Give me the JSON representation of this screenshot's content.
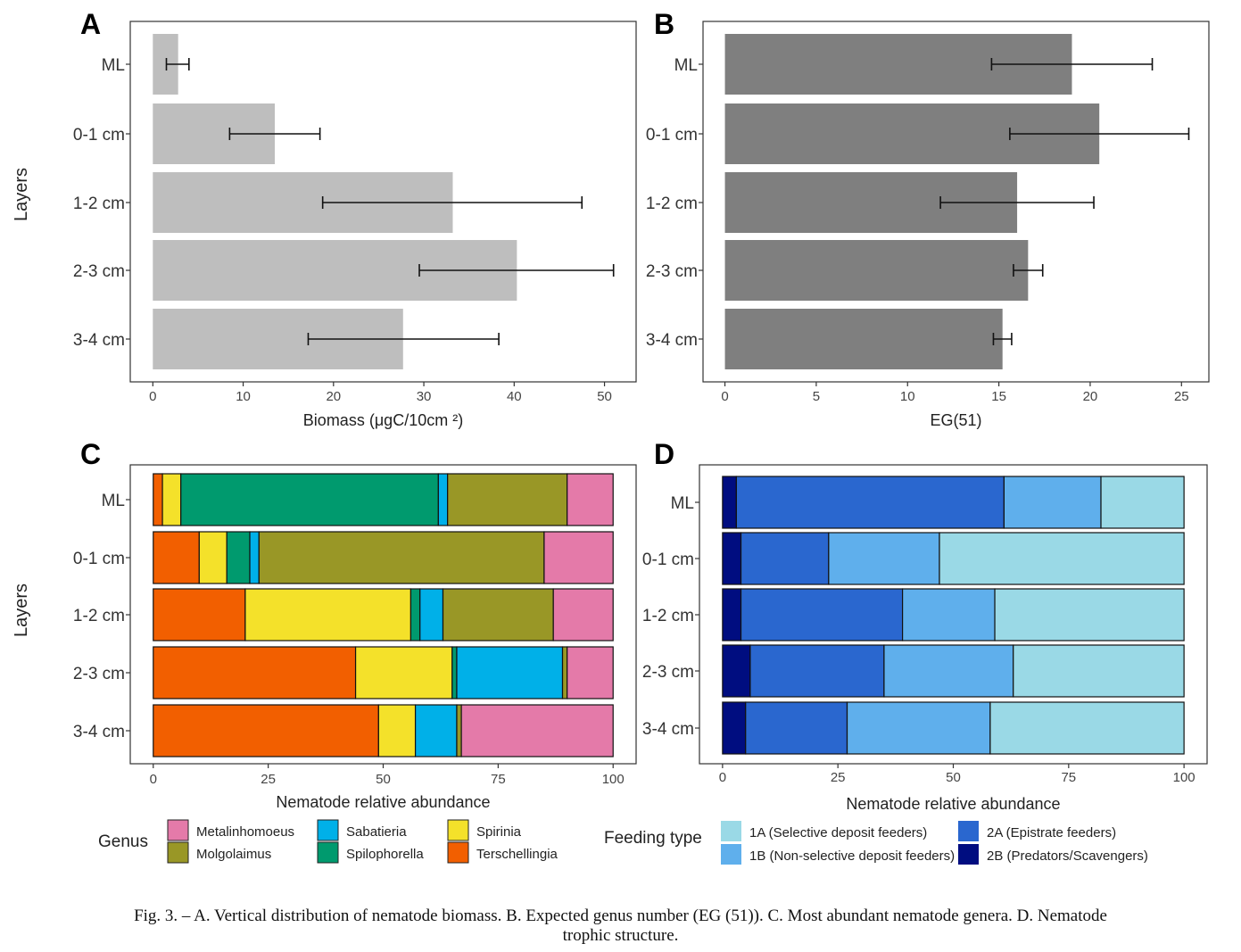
{
  "caption": {
    "line1": "Fig. 3. – A. Vertical distribution of nematode biomass. B. Expected genus number (EG (51)). C. Most abundant nematode genera. D. Nematode",
    "line2": "trophic structure."
  },
  "chart_data": [
    {
      "panel": "A",
      "type": "bar",
      "orientation": "horizontal",
      "categories": [
        "ML",
        "0-1 cm",
        "1-2 cm",
        "2-3 cm",
        "3-4 cm"
      ],
      "values": [
        2.8,
        13.5,
        33.2,
        40.3,
        27.7
      ],
      "error_low": [
        1.5,
        8.5,
        18.8,
        29.5,
        17.2
      ],
      "error_high": [
        4.0,
        18.5,
        47.5,
        51.0,
        38.3
      ],
      "xlabel": "Biomass (μgC/10cm ²)",
      "ylabel": "Layers",
      "xlim": [
        -2.5,
        53.5
      ],
      "xticks": [
        0,
        10,
        20,
        30,
        40,
        50
      ],
      "color": "#bebebe"
    },
    {
      "panel": "B",
      "type": "bar",
      "orientation": "horizontal",
      "categories": [
        "ML",
        "0-1 cm",
        "1-2 cm",
        "2-3 cm",
        "3-4 cm"
      ],
      "values": [
        19.0,
        20.5,
        16.0,
        16.6,
        15.2
      ],
      "error_low": [
        14.6,
        15.6,
        11.8,
        15.8,
        14.7
      ],
      "error_high": [
        23.4,
        25.4,
        20.2,
        17.4,
        15.7
      ],
      "xlabel": "EG(51)",
      "ylabel": "",
      "xlim": [
        -1.2,
        26.5
      ],
      "xticks": [
        0,
        5,
        10,
        15,
        20,
        25
      ],
      "color": "#7f7f7f"
    },
    {
      "panel": "C",
      "type": "bar",
      "stacked": true,
      "orientation": "horizontal",
      "categories": [
        "ML",
        "0-1 cm",
        "1-2 cm",
        "2-3 cm",
        "3-4 cm"
      ],
      "series": [
        {
          "name": "Terschellingia",
          "color": "#f25f00",
          "values": [
            2,
            10,
            20,
            44,
            49
          ]
        },
        {
          "name": "Spirinia",
          "color": "#f4e12a",
          "values": [
            4,
            6,
            36,
            21,
            8
          ]
        },
        {
          "name": "Spilophorella",
          "color": "#009a6e",
          "values": [
            56,
            5,
            2,
            1,
            0
          ]
        },
        {
          "name": "Sabatieria",
          "color": "#00b0e8",
          "values": [
            2,
            2,
            5,
            23,
            9
          ]
        },
        {
          "name": "Molgolaimus",
          "color": "#999726",
          "values": [
            26,
            62,
            24,
            1,
            1
          ]
        },
        {
          "name": "Metalinhomoeus",
          "color": "#e47aa9",
          "values": [
            10,
            15,
            13,
            10,
            33
          ]
        }
      ],
      "legend_order": [
        "Metalinhomoeus",
        "Molgolaimus",
        "Sabatieria",
        "Spilophorella",
        "Spirinia",
        "Terschellingia"
      ],
      "legend_title": "Genus",
      "xlabel": "Nematode relative abundance",
      "ylabel": "Layers",
      "xlim": [
        -5,
        105
      ],
      "xticks": [
        0,
        25,
        50,
        75,
        100
      ]
    },
    {
      "panel": "D",
      "type": "bar",
      "stacked": true,
      "orientation": "horizontal",
      "categories": [
        "ML",
        "0-1 cm",
        "1-2 cm",
        "2-3 cm",
        "3-4 cm"
      ],
      "series": [
        {
          "name": "2B (Predators/Scavengers)",
          "color": "#000d80",
          "values": [
            3,
            4,
            4,
            6,
            5
          ]
        },
        {
          "name": "2A (Epistrate feeders)",
          "color": "#2a67cf",
          "values": [
            58,
            19,
            35,
            29,
            22
          ]
        },
        {
          "name": "1B (Non-selective deposit feeders)",
          "color": "#5fafec",
          "values": [
            21,
            24,
            20,
            28,
            31
          ]
        },
        {
          "name": "1A (Selective deposit feeders)",
          "color": "#9ad9e6",
          "values": [
            18,
            53,
            41,
            37,
            42
          ]
        }
      ],
      "legend_order": [
        "1A (Selective deposit feeders)",
        "1B (Non-selective deposit feeders)",
        "2A (Epistrate feeders)",
        "2B (Predators/Scavengers)"
      ],
      "legend_title": "Feeding type",
      "xlabel": "Nematode relative abundance",
      "ylabel": "",
      "xlim": [
        -5,
        105
      ],
      "xticks": [
        0,
        25,
        50,
        75,
        100
      ]
    }
  ]
}
